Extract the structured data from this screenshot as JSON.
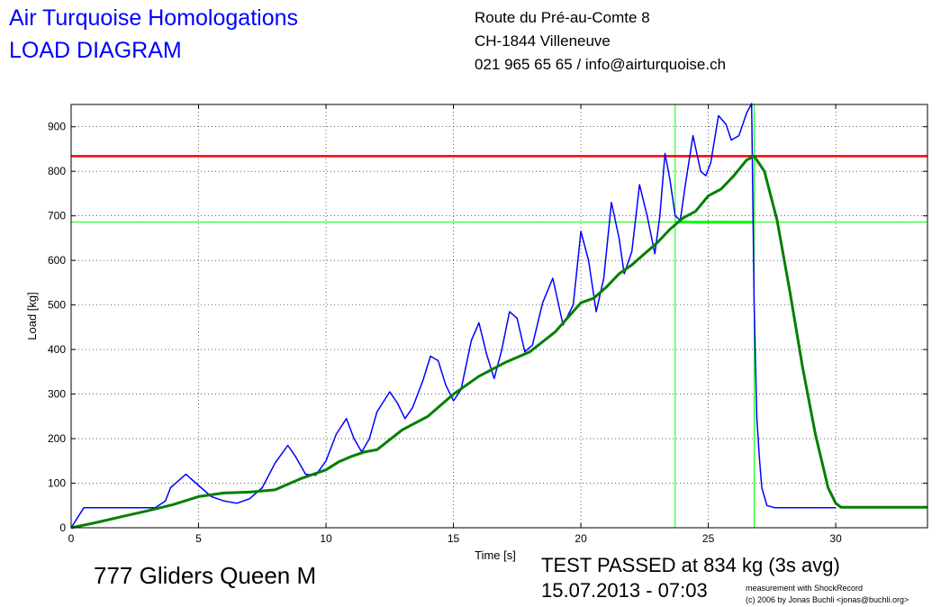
{
  "header": {
    "title_line1": "Air Turquoise Homologations",
    "title_line2": "LOAD DIAGRAM",
    "address_line1": "Route du Pré-au-Comte 8",
    "address_line2": "CH-1844 Villeneuve",
    "address_line3": "021 965 65 65 / info@airturquoise.ch"
  },
  "footer": {
    "glider_name": "777 Gliders Queen M",
    "test_result": "TEST PASSED at 834 kg (3s avg)",
    "test_datetime": "15.07.2013 - 07:03",
    "credit_line1": "measurement with ShockRecord",
    "credit_line2": "(c) 2006 by Jonas Buchli <jonas@buchli.org>"
  },
  "colors": {
    "raw_load": "#0000ff",
    "avg_load": "#008000",
    "max_line": "#ff0000",
    "threshold_line": "#00ff00"
  },
  "chart_data": {
    "type": "line",
    "xlabel": "Time [s]",
    "ylabel": "Load [kg]",
    "xlim": [
      0,
      33.6
    ],
    "ylim": [
      0,
      950
    ],
    "x_ticks": [
      0,
      5,
      10,
      15,
      20,
      25,
      30
    ],
    "y_ticks": [
      0,
      100,
      200,
      300,
      400,
      500,
      600,
      700,
      800,
      900
    ],
    "grid": true,
    "legend": "none",
    "reference_lines": {
      "max_avg_load": 834,
      "threshold_load": 686,
      "threshold_time": 23.7,
      "max_time": 26.8
    },
    "series": [
      {
        "key": "raw",
        "x": [
          0,
          0.5,
          3.3,
          3.7,
          3.9,
          4.2,
          4.5,
          5.0,
          5.5,
          6.0,
          6.5,
          7.0,
          7.5,
          8.0,
          8.5,
          8.8,
          9.2,
          9.6,
          10.0,
          10.4,
          10.8,
          11.1,
          11.4,
          11.7,
          12.0,
          12.5,
          12.8,
          13.1,
          13.4,
          13.8,
          14.1,
          14.4,
          14.7,
          15.0,
          15.3,
          15.7,
          16.0,
          16.3,
          16.6,
          16.9,
          17.2,
          17.5,
          17.8,
          18.1,
          18.5,
          18.9,
          19.3,
          19.7,
          20.0,
          20.3,
          20.6,
          20.9,
          21.2,
          21.5,
          21.7,
          22.0,
          22.3,
          22.6,
          22.9,
          23.1,
          23.3,
          23.5,
          23.7,
          23.9,
          24.1,
          24.4,
          24.7,
          24.9,
          25.1,
          25.4,
          25.7,
          25.9,
          26.2,
          26.5,
          26.7,
          26.8,
          26.9,
          27.0,
          27.1,
          27.3,
          27.6,
          30.0
        ],
        "values": [
          0,
          45,
          45,
          60,
          90,
          105,
          120,
          95,
          70,
          60,
          55,
          65,
          90,
          145,
          185,
          160,
          120,
          118,
          150,
          210,
          245,
          200,
          170,
          200,
          260,
          305,
          280,
          245,
          270,
          330,
          385,
          375,
          320,
          285,
          310,
          420,
          460,
          390,
          335,
          400,
          485,
          470,
          395,
          410,
          505,
          560,
          455,
          500,
          665,
          600,
          485,
          560,
          730,
          650,
          570,
          620,
          770,
          700,
          615,
          700,
          840,
          780,
          700,
          690,
          770,
          880,
          800,
          790,
          820,
          925,
          905,
          870,
          880,
          930,
          960,
          500,
          250,
          160,
          90,
          50,
          45,
          45
        ]
      },
      {
        "key": "avg",
        "x": [
          0,
          1,
          2,
          3,
          4,
          5,
          6,
          7,
          8,
          9,
          10,
          10.5,
          11,
          11.5,
          12,
          13,
          14,
          15,
          16,
          17,
          18,
          19,
          20,
          20.5,
          21,
          21.5,
          22,
          22.5,
          23,
          23.5,
          24,
          24.5,
          25,
          25.5,
          26,
          26.5,
          26.8,
          27.2,
          27.7,
          28.2,
          28.7,
          29.2,
          29.7,
          30.0,
          30.2,
          33.6
        ],
        "values": [
          0,
          12,
          25,
          38,
          52,
          70,
          78,
          80,
          85,
          110,
          130,
          148,
          160,
          170,
          175,
          220,
          250,
          300,
          340,
          370,
          395,
          440,
          505,
          515,
          540,
          570,
          590,
          615,
          640,
          670,
          695,
          710,
          745,
          760,
          790,
          825,
          834,
          800,
          690,
          530,
          360,
          210,
          90,
          55,
          46,
          46
        ]
      }
    ]
  }
}
